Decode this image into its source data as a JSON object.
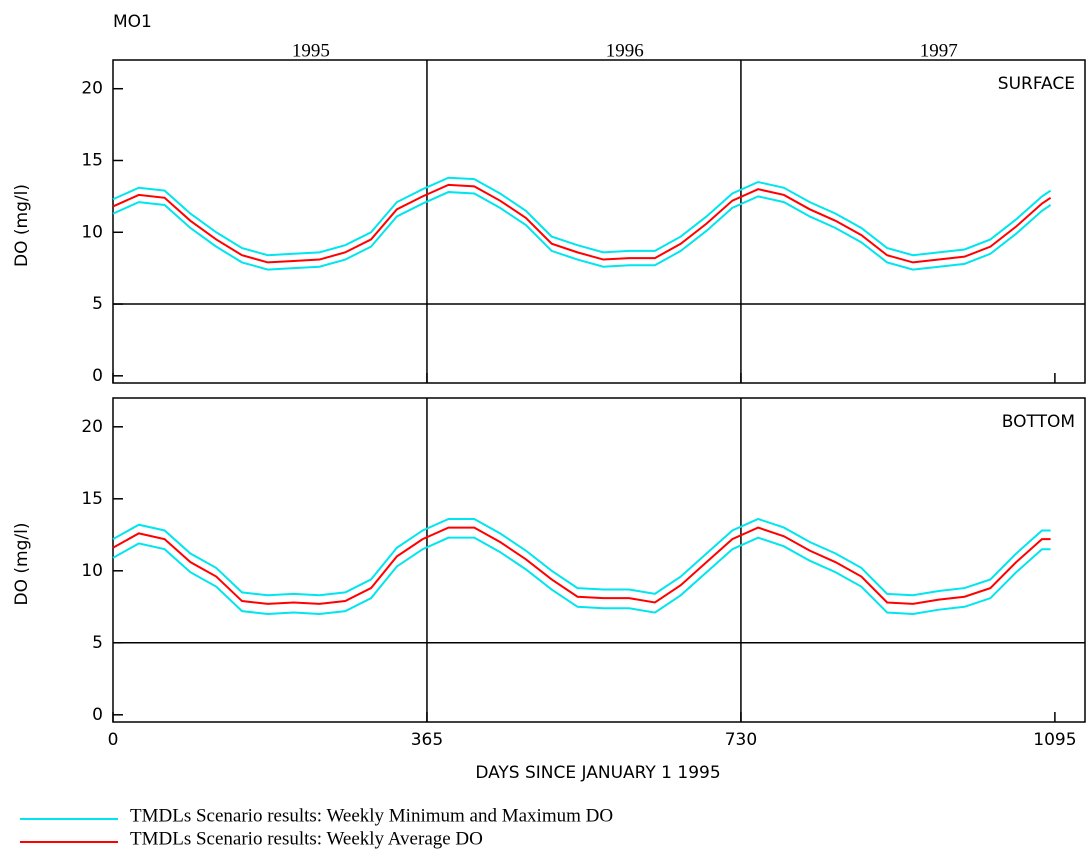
{
  "title": "MO1",
  "year_labels": [
    "1995",
    "1996",
    "1997"
  ],
  "legend": [
    {
      "label": "TMDLs Scenario results: Weekly Minimum and Maximum DO",
      "color": "#00e5ee"
    },
    {
      "label": "TMDLs Scenario results: Weekly Average DO",
      "color": "#ff0000"
    }
  ],
  "chart_data": [
    {
      "type": "line",
      "panel_label": "SURFACE",
      "y_label": "DO (mg/l)",
      "xlim": [
        0,
        1130
      ],
      "xticks": [
        0,
        365,
        730,
        1095
      ],
      "ylim": [
        -0.5,
        22
      ],
      "yticks": [
        0,
        5,
        10,
        15,
        20
      ],
      "hline": 5,
      "vlines": [
        365,
        730
      ],
      "x": [
        0,
        30,
        60,
        90,
        120,
        150,
        180,
        210,
        240,
        270,
        300,
        330,
        360,
        390,
        420,
        450,
        480,
        510,
        540,
        570,
        600,
        630,
        660,
        690,
        720,
        750,
        780,
        810,
        840,
        870,
        900,
        930,
        960,
        990,
        1020,
        1050,
        1080,
        1090
      ],
      "series": [
        {
          "color": "#00e5ee",
          "values": [
            11.3,
            12.1,
            11.9,
            10.3,
            9.0,
            7.9,
            7.4,
            7.5,
            7.6,
            8.1,
            9.0,
            11.1,
            12.0,
            12.8,
            12.7,
            11.7,
            10.5,
            8.7,
            8.1,
            7.6,
            7.7,
            7.7,
            8.7,
            10.1,
            11.7,
            12.5,
            12.1,
            11.1,
            10.3,
            9.3,
            7.9,
            7.4,
            7.6,
            7.8,
            8.5,
            9.9,
            11.5,
            11.9
          ]
        },
        {
          "color": "#00e5ee",
          "values": [
            12.3,
            13.1,
            12.9,
            11.3,
            10.0,
            8.9,
            8.4,
            8.5,
            8.6,
            9.1,
            10.0,
            12.1,
            13.0,
            13.8,
            13.7,
            12.7,
            11.5,
            9.7,
            9.1,
            8.6,
            8.7,
            8.7,
            9.7,
            11.1,
            12.7,
            13.5,
            13.1,
            12.1,
            11.3,
            10.3,
            8.9,
            8.4,
            8.6,
            8.8,
            9.5,
            10.9,
            12.5,
            12.9
          ]
        },
        {
          "color": "#ff0000",
          "values": [
            11.8,
            12.6,
            12.4,
            10.8,
            9.5,
            8.4,
            7.9,
            8.0,
            8.1,
            8.6,
            9.5,
            11.6,
            12.5,
            13.3,
            13.2,
            12.2,
            11.0,
            9.2,
            8.6,
            8.1,
            8.2,
            8.2,
            9.2,
            10.6,
            12.2,
            13.0,
            12.6,
            11.6,
            10.8,
            9.8,
            8.4,
            7.9,
            8.1,
            8.3,
            9.0,
            10.4,
            12.0,
            12.4
          ]
        }
      ]
    },
    {
      "type": "line",
      "panel_label": "BOTTOM",
      "y_label": "DO (mg/l)",
      "x_label": "DAYS SINCE JANUARY 1 1995",
      "xlim": [
        0,
        1130
      ],
      "xticks": [
        0,
        365,
        730,
        1095
      ],
      "ylim": [
        -0.5,
        22
      ],
      "yticks": [
        0,
        5,
        10,
        15,
        20
      ],
      "hline": 5,
      "vlines": [
        365,
        730
      ],
      "x": [
        0,
        30,
        60,
        90,
        120,
        150,
        180,
        210,
        240,
        270,
        300,
        330,
        360,
        390,
        420,
        450,
        480,
        510,
        540,
        570,
        600,
        630,
        660,
        690,
        720,
        750,
        780,
        810,
        840,
        870,
        900,
        930,
        960,
        990,
        1020,
        1050,
        1080,
        1090
      ],
      "series": [
        {
          "color": "#00e5ee",
          "values": [
            10.9,
            11.9,
            11.5,
            9.9,
            8.9,
            7.2,
            7.0,
            7.1,
            7.0,
            7.2,
            8.1,
            10.3,
            11.5,
            12.3,
            12.3,
            11.3,
            10.1,
            8.7,
            7.5,
            7.4,
            7.4,
            7.1,
            8.3,
            9.9,
            11.5,
            12.3,
            11.7,
            10.7,
            9.9,
            8.9,
            7.1,
            7.0,
            7.3,
            7.5,
            8.1,
            9.9,
            11.5,
            11.5
          ]
        },
        {
          "color": "#00e5ee",
          "values": [
            12.2,
            13.2,
            12.8,
            11.2,
            10.2,
            8.5,
            8.3,
            8.4,
            8.3,
            8.5,
            9.4,
            11.6,
            12.8,
            13.6,
            13.6,
            12.6,
            11.4,
            10.0,
            8.8,
            8.7,
            8.7,
            8.4,
            9.6,
            11.2,
            12.8,
            13.6,
            13.0,
            12.0,
            11.2,
            10.2,
            8.4,
            8.3,
            8.6,
            8.8,
            9.4,
            11.2,
            12.8,
            12.8
          ]
        },
        {
          "color": "#ff0000",
          "values": [
            11.6,
            12.6,
            12.2,
            10.6,
            9.6,
            7.9,
            7.7,
            7.8,
            7.7,
            7.9,
            8.8,
            11.0,
            12.2,
            13.0,
            13.0,
            12.0,
            10.8,
            9.4,
            8.2,
            8.1,
            8.1,
            7.8,
            9.0,
            10.6,
            12.2,
            13.0,
            12.4,
            11.4,
            10.6,
            9.6,
            7.8,
            7.7,
            8.0,
            8.2,
            8.8,
            10.6,
            12.2,
            12.2
          ]
        }
      ]
    }
  ]
}
